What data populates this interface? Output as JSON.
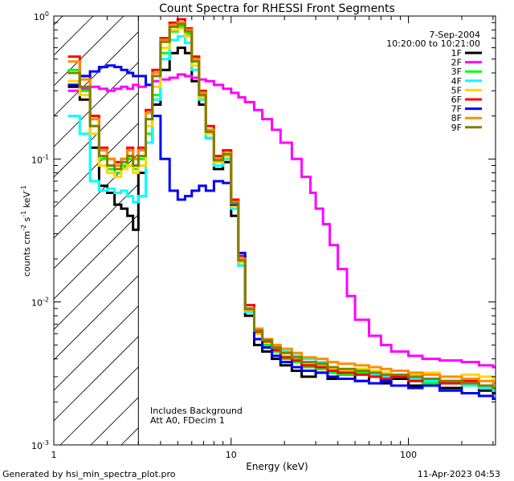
{
  "chart_data": {
    "type": "line",
    "title": "Count Spectra for RHESSI Front Segments",
    "xlabel": "Energy (keV)",
    "ylabel": "counts cm-2 s-1 keV-1",
    "ylabel_parts": [
      "counts cm",
      "-2",
      " s",
      "-1",
      " keV",
      "-1"
    ],
    "xscale": "log",
    "yscale": "log",
    "xlim": [
      1,
      310
    ],
    "ylim": [
      0.001,
      1
    ],
    "x_ticks": [
      {
        "value": 1,
        "label": "1"
      },
      {
        "value": 10,
        "label": "10"
      },
      {
        "value": 100,
        "label": "100"
      }
    ],
    "y_ticks": [
      {
        "value": 1,
        "base": "10",
        "exp": "0"
      },
      {
        "value": 0.1,
        "base": "10",
        "exp": "-1"
      },
      {
        "value": 0.01,
        "base": "10",
        "exp": "-2"
      },
      {
        "value": 0.001,
        "base": "10",
        "exp": "-3"
      }
    ],
    "attenuator_cutoff_keV": 3,
    "date": "7-Sep-2004",
    "time_range": "10:20:00 to 10:21:00",
    "annotations": [
      "Includes Background",
      "Att A0, FDecim 1"
    ],
    "series": [
      {
        "name": "1F",
        "color": "#000000",
        "x": [
          1.2,
          1.4,
          1.6,
          1.8,
          2.0,
          2.2,
          2.4,
          2.6,
          2.8,
          3.0,
          3.3,
          3.6,
          4.0,
          4.5,
          5.0,
          5.5,
          6.0,
          6.6,
          7.2,
          8.0,
          9.0,
          10.0,
          11.0,
          12.0,
          13.5,
          15,
          17,
          19,
          22,
          25,
          30,
          35,
          40,
          50,
          60,
          70,
          80,
          100,
          120,
          150,
          200,
          250,
          300
        ],
        "y": [
          0.32,
          0.26,
          0.12,
          0.065,
          0.058,
          0.048,
          0.045,
          0.04,
          0.032,
          0.08,
          0.13,
          0.24,
          0.42,
          0.55,
          0.6,
          0.55,
          0.35,
          0.24,
          0.14,
          0.085,
          0.095,
          0.04,
          0.018,
          0.008,
          0.005,
          0.0045,
          0.004,
          0.0036,
          0.0033,
          0.003,
          0.0032,
          0.0029,
          0.0031,
          0.0028,
          0.003,
          0.0027,
          0.0029,
          0.0026,
          0.0027,
          0.0025,
          0.0026,
          0.0024,
          0.0023
        ]
      },
      {
        "name": "2F",
        "color": "#ff00ff",
        "x": [
          1.2,
          1.4,
          1.6,
          1.8,
          2.0,
          2.2,
          2.4,
          2.6,
          2.8,
          3.0,
          3.3,
          3.6,
          4.0,
          4.5,
          5.0,
          5.5,
          6.0,
          6.6,
          7.2,
          8.0,
          9.0,
          10,
          11,
          12,
          13.5,
          15,
          17,
          19,
          22,
          25,
          28,
          30,
          33,
          36,
          40,
          45,
          50,
          60,
          70,
          80,
          100,
          120,
          150,
          200,
          250,
          300
        ],
        "y": [
          0.3,
          0.31,
          0.32,
          0.31,
          0.3,
          0.31,
          0.32,
          0.31,
          0.33,
          0.32,
          0.33,
          0.35,
          0.36,
          0.37,
          0.39,
          0.38,
          0.37,
          0.36,
          0.35,
          0.33,
          0.31,
          0.29,
          0.27,
          0.25,
          0.22,
          0.19,
          0.16,
          0.13,
          0.1,
          0.075,
          0.058,
          0.045,
          0.035,
          0.025,
          0.017,
          0.011,
          0.0075,
          0.0058,
          0.005,
          0.0045,
          0.0042,
          0.004,
          0.0039,
          0.0038,
          0.0036,
          0.0035
        ]
      },
      {
        "name": "3F",
        "color": "#00ff00",
        "x": [
          1.2,
          1.4,
          1.6,
          1.8,
          2.0,
          2.2,
          2.4,
          2.6,
          2.8,
          3.0,
          3.3,
          3.6,
          4.0,
          4.5,
          5.0,
          5.5,
          6.0,
          6.6,
          7.2,
          8.0,
          9.0,
          10,
          11,
          12,
          13.5,
          15,
          17,
          19,
          22,
          25,
          30,
          35,
          40,
          50,
          60,
          70,
          80,
          100,
          120,
          150,
          200,
          250,
          300
        ],
        "y": [
          0.42,
          0.3,
          0.17,
          0.1,
          0.085,
          0.08,
          0.09,
          0.1,
          0.085,
          0.1,
          0.15,
          0.28,
          0.55,
          0.78,
          0.85,
          0.75,
          0.5,
          0.28,
          0.16,
          0.1,
          0.11,
          0.05,
          0.02,
          0.009,
          0.006,
          0.005,
          0.0045,
          0.004,
          0.0038,
          0.0035,
          0.0034,
          0.0032,
          0.0031,
          0.0032,
          0.003,
          0.0029,
          0.003,
          0.0028,
          0.0027,
          0.0028,
          0.0026,
          0.0025,
          0.0024
        ]
      },
      {
        "name": "4F",
        "color": "#00ffff",
        "x": [
          1.2,
          1.4,
          1.6,
          1.8,
          2.0,
          2.2,
          2.4,
          2.6,
          2.8,
          3.0,
          3.3,
          3.6,
          4.0,
          4.5,
          5.0,
          5.5,
          6.0,
          6.6,
          7.2,
          8.0,
          9.0,
          10,
          11,
          12,
          13.5,
          15,
          17,
          19,
          22,
          25,
          30,
          35,
          40,
          50,
          60,
          70,
          80,
          100,
          120,
          150,
          200,
          250,
          300
        ],
        "y": [
          0.2,
          0.15,
          0.07,
          0.06,
          0.062,
          0.058,
          0.06,
          0.055,
          0.05,
          0.055,
          0.13,
          0.26,
          0.5,
          0.68,
          0.72,
          0.65,
          0.42,
          0.26,
          0.14,
          0.09,
          0.1,
          0.045,
          0.018,
          0.0085,
          0.0065,
          0.0055,
          0.005,
          0.0045,
          0.0042,
          0.004,
          0.0038,
          0.0035,
          0.0033,
          0.0033,
          0.0031,
          0.003,
          0.003,
          0.0029,
          0.0028,
          0.0027,
          0.0026,
          0.0025,
          0.0024
        ]
      },
      {
        "name": "5F",
        "color": "#ffd700",
        "x": [
          1.2,
          1.4,
          1.6,
          1.8,
          2.0,
          2.2,
          2.4,
          2.6,
          2.8,
          3.0,
          3.3,
          3.6,
          4.0,
          4.5,
          5.0,
          5.5,
          6.0,
          6.6,
          7.2,
          8.0,
          9.0,
          10,
          11,
          12,
          13.5,
          15,
          17,
          19,
          22,
          25,
          30,
          35,
          40,
          50,
          60,
          70,
          80,
          100,
          120,
          150,
          200,
          250,
          300
        ],
        "y": [
          0.35,
          0.28,
          0.15,
          0.09,
          0.08,
          0.075,
          0.085,
          0.09,
          0.08,
          0.09,
          0.17,
          0.32,
          0.6,
          0.8,
          0.82,
          0.72,
          0.45,
          0.27,
          0.15,
          0.095,
          0.105,
          0.047,
          0.019,
          0.0088,
          0.006,
          0.0052,
          0.0047,
          0.0042,
          0.004,
          0.0037,
          0.0036,
          0.0034,
          0.0033,
          0.0034,
          0.0033,
          0.0032,
          0.0033,
          0.0031,
          0.0032,
          0.003,
          0.0031,
          0.003,
          0.0028
        ]
      },
      {
        "name": "6F",
        "color": "#ff0000",
        "x": [
          1.2,
          1.4,
          1.6,
          1.8,
          2.0,
          2.2,
          2.4,
          2.6,
          2.8,
          3.0,
          3.3,
          3.6,
          4.0,
          4.5,
          5.0,
          5.5,
          6.0,
          6.6,
          7.2,
          8.0,
          9.0,
          10,
          11,
          12,
          13.5,
          15,
          17,
          19,
          22,
          25,
          30,
          35,
          40,
          50,
          60,
          70,
          80,
          100,
          120,
          150,
          200,
          250,
          300
        ],
        "y": [
          0.52,
          0.38,
          0.2,
          0.12,
          0.1,
          0.095,
          0.1,
          0.12,
          0.1,
          0.12,
          0.22,
          0.42,
          0.7,
          0.9,
          0.95,
          0.82,
          0.52,
          0.3,
          0.17,
          0.105,
          0.115,
          0.052,
          0.021,
          0.0095,
          0.0062,
          0.0053,
          0.0046,
          0.0041,
          0.0039,
          0.0036,
          0.0035,
          0.0033,
          0.0032,
          0.0031,
          0.003,
          0.0029,
          0.003,
          0.0028,
          0.0029,
          0.0027,
          0.0028,
          0.0026,
          0.0025
        ]
      },
      {
        "name": "7F",
        "color": "#0000ff",
        "x": [
          1.2,
          1.4,
          1.6,
          1.8,
          2.0,
          2.2,
          2.4,
          2.6,
          2.8,
          3.0,
          3.3,
          3.6,
          4.0,
          4.5,
          5.0,
          5.5,
          6.0,
          6.6,
          7.2,
          8.0,
          9.0,
          10,
          11,
          12,
          13.5,
          15,
          17,
          19,
          22,
          25,
          30,
          35,
          40,
          50,
          60,
          70,
          80,
          100,
          120,
          150,
          200,
          250,
          300
        ],
        "y": [
          0.33,
          0.38,
          0.41,
          0.44,
          0.45,
          0.44,
          0.42,
          0.4,
          0.38,
          0.38,
          0.33,
          0.2,
          0.1,
          0.06,
          0.052,
          0.055,
          0.06,
          0.065,
          0.06,
          0.07,
          0.068,
          0.048,
          0.022,
          0.009,
          0.0055,
          0.0048,
          0.0042,
          0.0038,
          0.0035,
          0.0033,
          0.0032,
          0.003,
          0.0029,
          0.0028,
          0.0027,
          0.0028,
          0.0026,
          0.0025,
          0.0026,
          0.0024,
          0.0023,
          0.0022,
          0.0021
        ]
      },
      {
        "name": "8F",
        "color": "#ff8c00",
        "x": [
          1.2,
          1.4,
          1.6,
          1.8,
          2.0,
          2.2,
          2.4,
          2.6,
          2.8,
          3.0,
          3.3,
          3.6,
          4.0,
          4.5,
          5.0,
          5.5,
          6.0,
          6.6,
          7.2,
          8.0,
          9.0,
          10,
          11,
          12,
          13.5,
          15,
          17,
          19,
          22,
          25,
          30,
          35,
          40,
          50,
          60,
          70,
          80,
          100,
          120,
          150,
          200,
          250,
          300
        ],
        "y": [
          0.48,
          0.36,
          0.19,
          0.115,
          0.1,
          0.09,
          0.1,
          0.115,
          0.1,
          0.115,
          0.21,
          0.4,
          0.68,
          0.86,
          0.9,
          0.8,
          0.5,
          0.29,
          0.16,
          0.1,
          0.11,
          0.05,
          0.02,
          0.009,
          0.0065,
          0.0055,
          0.005,
          0.0047,
          0.0044,
          0.0041,
          0.004,
          0.0038,
          0.0037,
          0.0036,
          0.0035,
          0.0034,
          0.0033,
          0.0032,
          0.0031,
          0.003,
          0.0029,
          0.0028,
          0.0027
        ]
      },
      {
        "name": "9F",
        "color": "#808000",
        "x": [
          1.2,
          1.4,
          1.6,
          1.8,
          2.0,
          2.2,
          2.4,
          2.6,
          2.8,
          3.0,
          3.3,
          3.6,
          4.0,
          4.5,
          5.0,
          5.5,
          6.0,
          6.6,
          7.2,
          8.0,
          9.0,
          10,
          11,
          12,
          13.5,
          15,
          17,
          19,
          22,
          25,
          30,
          35,
          40,
          50,
          60,
          70,
          80,
          100,
          120,
          150,
          200,
          250,
          300
        ],
        "y": [
          0.4,
          0.32,
          0.17,
          0.105,
          0.09,
          0.085,
          0.095,
          0.105,
          0.09,
          0.105,
          0.19,
          0.38,
          0.66,
          0.84,
          0.88,
          0.78,
          0.48,
          0.28,
          0.155,
          0.098,
          0.108,
          0.049,
          0.0195,
          0.0089,
          0.0063,
          0.0054,
          0.0048,
          0.0044,
          0.0041,
          0.0038,
          0.0037,
          0.0035,
          0.0034,
          0.0033,
          0.0032,
          0.0031,
          0.0031,
          0.003,
          0.0029,
          0.0028,
          0.0027,
          0.0026,
          0.0025
        ]
      }
    ]
  },
  "footer": {
    "generated_by": "Generated by  hsi_min_spectra_plot.pro",
    "timestamp": "11-Apr-2023 04:53"
  }
}
